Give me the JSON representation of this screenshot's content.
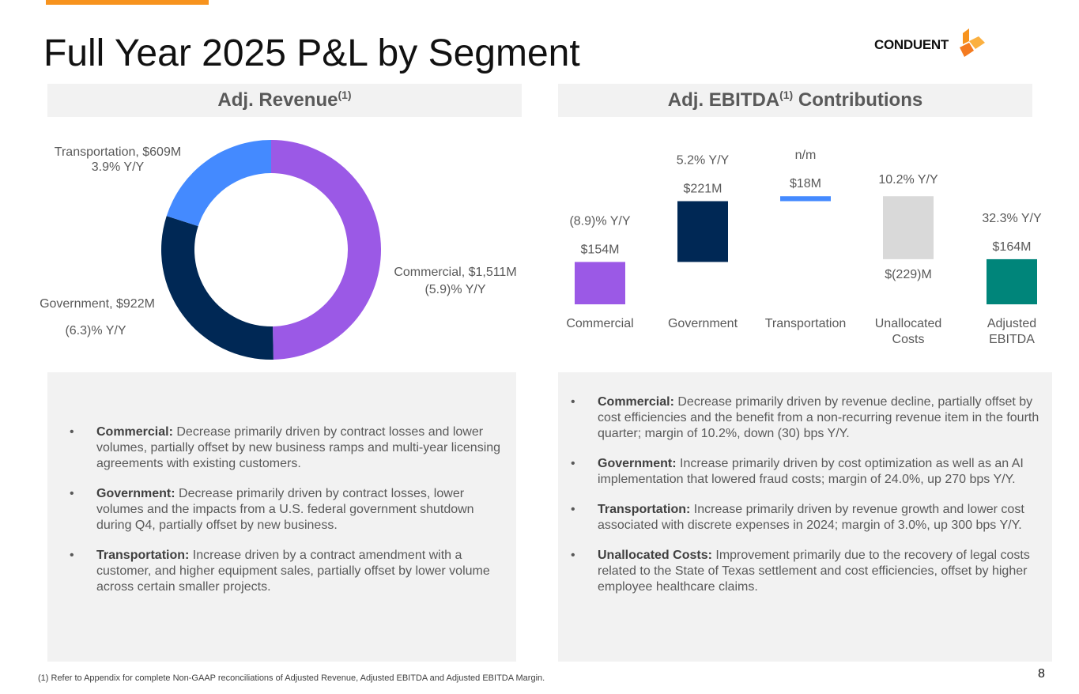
{
  "page": {
    "title": "Full Year 2025 P&L by Segment",
    "page_number": "8",
    "footnote": "(1) Refer to Appendix for complete Non-GAAP reconciliations of Adjusted Revenue, Adjusted EBITDA and Adjusted EBITDA Margin."
  },
  "logo": {
    "text": "CONDUENT",
    "colors": [
      "#f7931e",
      "#f47b20",
      "#fbb040"
    ]
  },
  "panels": {
    "revenue_title": "Adj. Revenue",
    "ebitda_title_a": "Adj. EBITDA",
    "ebitda_title_b": " Contributions",
    "sup": "(1)"
  },
  "chart_data": [
    {
      "type": "pie",
      "subtype": "donut",
      "title": "Adj. Revenue",
      "unit": "$M",
      "slices": [
        {
          "name": "Commercial",
          "value": 1511,
          "label": "Commercial, $1,511M",
          "yoy": "(5.9)% Y/Y",
          "color": "#9b59e6"
        },
        {
          "name": "Government",
          "value": 922,
          "label": "Government, $922M",
          "yoy": "(6.3)% Y/Y",
          "color": "#002855"
        },
        {
          "name": "Transportation",
          "value": 609,
          "label": "Transportation, $609M",
          "yoy": "3.9% Y/Y",
          "color": "#448aff"
        }
      ]
    },
    {
      "type": "bar",
      "subtype": "waterfall",
      "title": "Adj. EBITDA Contributions",
      "unit": "$M",
      "categories": [
        "Commercial",
        "Government",
        "Transportation",
        "Unallocated Costs",
        "Adjusted EBITDA"
      ],
      "category_lines": [
        [
          "Commercial"
        ],
        [
          "Government"
        ],
        [
          "Transportation"
        ],
        [
          "Unallocated",
          "Costs"
        ],
        [
          "Adjusted",
          "EBITDA"
        ]
      ],
      "values": [
        154,
        221,
        18,
        -229,
        164
      ],
      "value_labels": [
        "$154M",
        "$221M",
        "$18M",
        "$(229)M",
        "$164M"
      ],
      "yoy_labels": [
        "(8.9)% Y/Y",
        "5.2% Y/Y",
        "n/m",
        "10.2% Y/Y",
        "32.3% Y/Y"
      ],
      "total_index": 4,
      "colors": [
        "#9b59e6",
        "#002855",
        "#448aff",
        "#d9d9d9",
        "#00857a"
      ]
    }
  ],
  "commentary": {
    "revenue": [
      {
        "label": "Commercial:",
        "text": " Decrease primarily driven by contract losses  and lower volumes, partially offset by new business ramps and multi-year licensing agreements with existing customers."
      },
      {
        "label": "Government:",
        "text": " Decrease primarily driven by contract losses, lower volumes and the impacts from a U.S. federal government shutdown during Q4, partially offset by new business."
      },
      {
        "label": "Transportation:",
        "text": " Increase driven by a contract amendment with a customer, and higher equipment sales, partially offset by lower volume across certain smaller projects."
      }
    ],
    "ebitda": [
      {
        "label": "Commercial:",
        "text": "  Decrease primarily driven by revenue decline, partially offset by cost efficiencies and the benefit from a non-recurring revenue item in the fourth quarter; margin of 10.2%, down (30) bps Y/Y."
      },
      {
        "label": "Government:",
        "text": " Increase primarily driven by cost optimization as well as an AI implementation that lowered fraud costs; margin of 24.0%, up 270 bps Y/Y."
      },
      {
        "label": "Transportation:",
        "text": " Increase primarily driven by revenue growth and lower cost associated with discrete expenses in 2024; margin of 3.0%, up 300 bps Y/Y."
      },
      {
        "label": "Unallocated Costs:",
        "text": " Improvement primarily due to the recovery of legal costs related to the State of Texas settlement and cost efficiencies, offset by higher employee healthcare claims."
      }
    ],
    "bullet": "•"
  }
}
